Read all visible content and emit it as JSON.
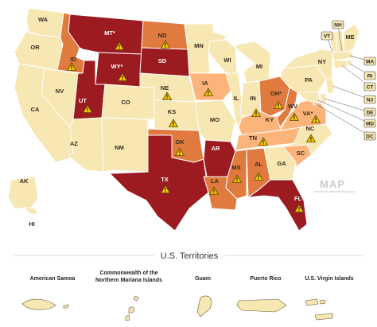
{
  "colors": {
    "tier_low": "#f6e7b3",
    "tier_mid": "#fdb47a",
    "tier_high": "#e07a3f",
    "tier_top": "#9b1b21",
    "border": "#ffffff",
    "warning": "#f7c600"
  },
  "states": [
    {
      "abbr": "WA",
      "tier": "tier_low"
    },
    {
      "abbr": "OR",
      "tier": "tier_low"
    },
    {
      "abbr": "CA",
      "tier": "tier_low"
    },
    {
      "abbr": "NV",
      "tier": "tier_low"
    },
    {
      "abbr": "ID",
      "tier": "tier_high",
      "warning": true
    },
    {
      "abbr": "MT*",
      "tier": "tier_top",
      "warning": true
    },
    {
      "abbr": "WY*",
      "tier": "tier_top",
      "warning": true
    },
    {
      "abbr": "UT",
      "tier": "tier_top",
      "warning": true
    },
    {
      "abbr": "AZ",
      "tier": "tier_low"
    },
    {
      "abbr": "CO",
      "tier": "tier_low"
    },
    {
      "abbr": "NM",
      "tier": "tier_low"
    },
    {
      "abbr": "ND",
      "tier": "tier_high",
      "warning": true
    },
    {
      "abbr": "SD",
      "tier": "tier_top"
    },
    {
      "abbr": "NE",
      "tier": "tier_low",
      "warning": true
    },
    {
      "abbr": "KS",
      "tier": "tier_low",
      "warning": true
    },
    {
      "abbr": "OK",
      "tier": "tier_high",
      "warning": true
    },
    {
      "abbr": "TX",
      "tier": "tier_top",
      "warning": true
    },
    {
      "abbr": "MN",
      "tier": "tier_low"
    },
    {
      "abbr": "IA",
      "tier": "tier_mid",
      "warning": true
    },
    {
      "abbr": "MO",
      "tier": "tier_low"
    },
    {
      "abbr": "AR",
      "tier": "tier_top"
    },
    {
      "abbr": "LA",
      "tier": "tier_high",
      "warning": true
    },
    {
      "abbr": "WI",
      "tier": "tier_low"
    },
    {
      "abbr": "IL",
      "tier": "tier_low"
    },
    {
      "abbr": "MI",
      "tier": "tier_low"
    },
    {
      "abbr": "IN",
      "tier": "tier_low",
      "warning": true
    },
    {
      "abbr": "OH*",
      "tier": "tier_high",
      "warning": true
    },
    {
      "abbr": "KY",
      "tier": "tier_mid"
    },
    {
      "abbr": "TN",
      "tier": "tier_mid",
      "warning": true
    },
    {
      "abbr": "MS",
      "tier": "tier_high",
      "warning": true
    },
    {
      "abbr": "AL",
      "tier": "tier_high",
      "warning": true
    },
    {
      "abbr": "GA",
      "tier": "tier_low"
    },
    {
      "abbr": "FL*",
      "tier": "tier_top",
      "warning": true
    },
    {
      "abbr": "SC",
      "tier": "tier_mid"
    },
    {
      "abbr": "NC",
      "tier": "tier_low",
      "warning": true
    },
    {
      "abbr": "VA*",
      "tier": "tier_mid",
      "warning": true
    },
    {
      "abbr": "WV",
      "tier": "tier_high",
      "warning": true
    },
    {
      "abbr": "PA",
      "tier": "tier_low"
    },
    {
      "abbr": "NY",
      "tier": "tier_low"
    },
    {
      "abbr": "ME",
      "tier": "tier_low"
    },
    {
      "abbr": "AK",
      "tier": "tier_low"
    },
    {
      "abbr": "HI",
      "tier": "tier_low"
    }
  ],
  "box_labels": [
    "NH",
    "VT",
    "MA",
    "RI",
    "CT",
    "NJ",
    "DE",
    "MD",
    "DC"
  ],
  "territories_title": "U.S. Territories",
  "territories": [
    {
      "name_lines": [
        "American Samoa"
      ]
    },
    {
      "name_lines": [
        "Commonwealth of the",
        "Northern Mariana Islands"
      ]
    },
    {
      "name_lines": [
        "Guam"
      ]
    },
    {
      "name_lines": [
        "Puerto Rico"
      ]
    },
    {
      "name_lines": [
        "U.S. Virgin Islands"
      ]
    }
  ],
  "logo": {
    "brand": "MAP",
    "sub": "movement advancement project"
  }
}
